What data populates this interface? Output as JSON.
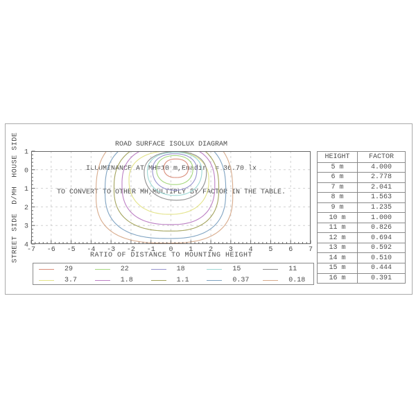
{
  "chart_data": {
    "type": "contour",
    "title": "ROAD SURFACE ISOLUX DIAGRAM",
    "subtitle": "ILLUMINANCE AT MH=10 m,Enadir  = 36.70 lx",
    "note": "TO CONVERT TO OTHER MH,MULTIPLY BY FACTOR IN THE TABLE.",
    "xlabel": "RATIO OF DISTANCE TO MOUNTING HEIGHT",
    "ylabel": "STREET SIDE  D/MH  HOUSE SIDE",
    "xlim": [
      -7,
      7
    ],
    "ylim": [
      -1,
      4
    ],
    "x_ticks": [
      "-7",
      "-6",
      "-5",
      "-4",
      "-3",
      "-2",
      "-1",
      "0",
      "1",
      "2",
      "3",
      "4",
      "5",
      "6",
      "7"
    ],
    "y_ticks": [
      "1",
      "0",
      "1",
      "2",
      "3",
      "4"
    ],
    "grid": true,
    "legend_position": "bottom",
    "levels_lx": [
      "29",
      "22",
      "18",
      "15",
      "11",
      "3.7",
      "1.8",
      "1.1",
      "0.37",
      "0.18"
    ],
    "contours": [
      {
        "level": "29",
        "color": "#d98d7a",
        "shape": {
          "cx": 0.25,
          "cy": -0.08,
          "rxL": 0.6,
          "rxR": 0.62,
          "ryT": 0.5,
          "ryB": 0.5,
          "n": 2.3
        }
      },
      {
        "level": "22",
        "color": "#a6d87e",
        "shape": {
          "cx": 0.2,
          "cy": -0.02,
          "rxL": 0.92,
          "rxR": 0.9,
          "ryT": 0.74,
          "ryB": 0.82,
          "n": 2.2
        }
      },
      {
        "level": "18",
        "color": "#9693ce",
        "shape": {
          "cx": 0.2,
          "cy": 0.02,
          "rxL": 1.12,
          "rxR": 1.1,
          "ryT": 0.88,
          "ryB": 1.08,
          "n": 2.2
        }
      },
      {
        "level": "15",
        "color": "#9cd8d4",
        "shape": {
          "cx": 0.22,
          "cy": 0.06,
          "rxL": 1.4,
          "rxR": 1.33,
          "ryT": 1.0,
          "ryB": 1.32,
          "n": 2.2
        }
      },
      {
        "level": "11",
        "color": "#8f8f8f",
        "shape": {
          "cx": 0.28,
          "cy": 0.12,
          "rxL": 1.62,
          "rxR": 1.5,
          "ryT": 1.1,
          "ryB": 1.52,
          "n": 2.2
        }
      },
      {
        "level": "3.7",
        "color": "#e3e388",
        "shape": {
          "cx": -0.05,
          "cy": 0.55,
          "rxL": 2.05,
          "rxR": 1.95,
          "ryT": 1.55,
          "ryB": 1.85,
          "n": 2.3
        }
      },
      {
        "level": "1.8",
        "color": "#bc7fc4",
        "shape": {
          "cx": 0.0,
          "cy": 0.8,
          "rxL": 2.45,
          "rxR": 2.2,
          "ryT": 2.1,
          "ryB": 2.15,
          "n": 2.5
        }
      },
      {
        "level": "1.1",
        "color": "#a3a35c",
        "shape": {
          "cx": 0.0,
          "cy": 1.0,
          "rxL": 2.85,
          "rxR": 2.4,
          "ryT": 2.5,
          "ryB": 2.3,
          "n": 2.5
        }
      },
      {
        "level": "0.37",
        "color": "#7fa3c2",
        "shape": {
          "cx": -0.1,
          "cy": 1.15,
          "rxL": 3.2,
          "rxR": 2.85,
          "ryT": 2.9,
          "ryB": 2.55,
          "n": 2.6
        }
      },
      {
        "level": "0.18",
        "color": "#d8ab8c",
        "shape": {
          "cx": -0.2,
          "cy": 1.3,
          "rxL": 3.55,
          "rxR": 3.3,
          "ryT": 3.4,
          "ryB": 2.65,
          "n": 2.7
        }
      }
    ]
  },
  "table": {
    "headers": [
      "HEIGHT",
      "FACTOR"
    ],
    "rows": [
      [
        "5 m",
        "4.000"
      ],
      [
        "6 m",
        "2.778"
      ],
      [
        "7 m",
        "2.041"
      ],
      [
        "8 m",
        "1.563"
      ],
      [
        "9 m",
        "1.235"
      ],
      [
        "10 m",
        "1.000"
      ],
      [
        "11 m",
        "0.826"
      ],
      [
        "12 m",
        "0.694"
      ],
      [
        "13 m",
        "0.592"
      ],
      [
        "14 m",
        "0.510"
      ],
      [
        "15 m",
        "0.444"
      ],
      [
        "16 m",
        "0.391"
      ]
    ]
  },
  "colors": {
    "text": "#4d4d4d",
    "frame_border": "#aaaaaa",
    "axis": "#666666",
    "grid": "#d0d0d0",
    "table_border": "#8a8a8a"
  }
}
